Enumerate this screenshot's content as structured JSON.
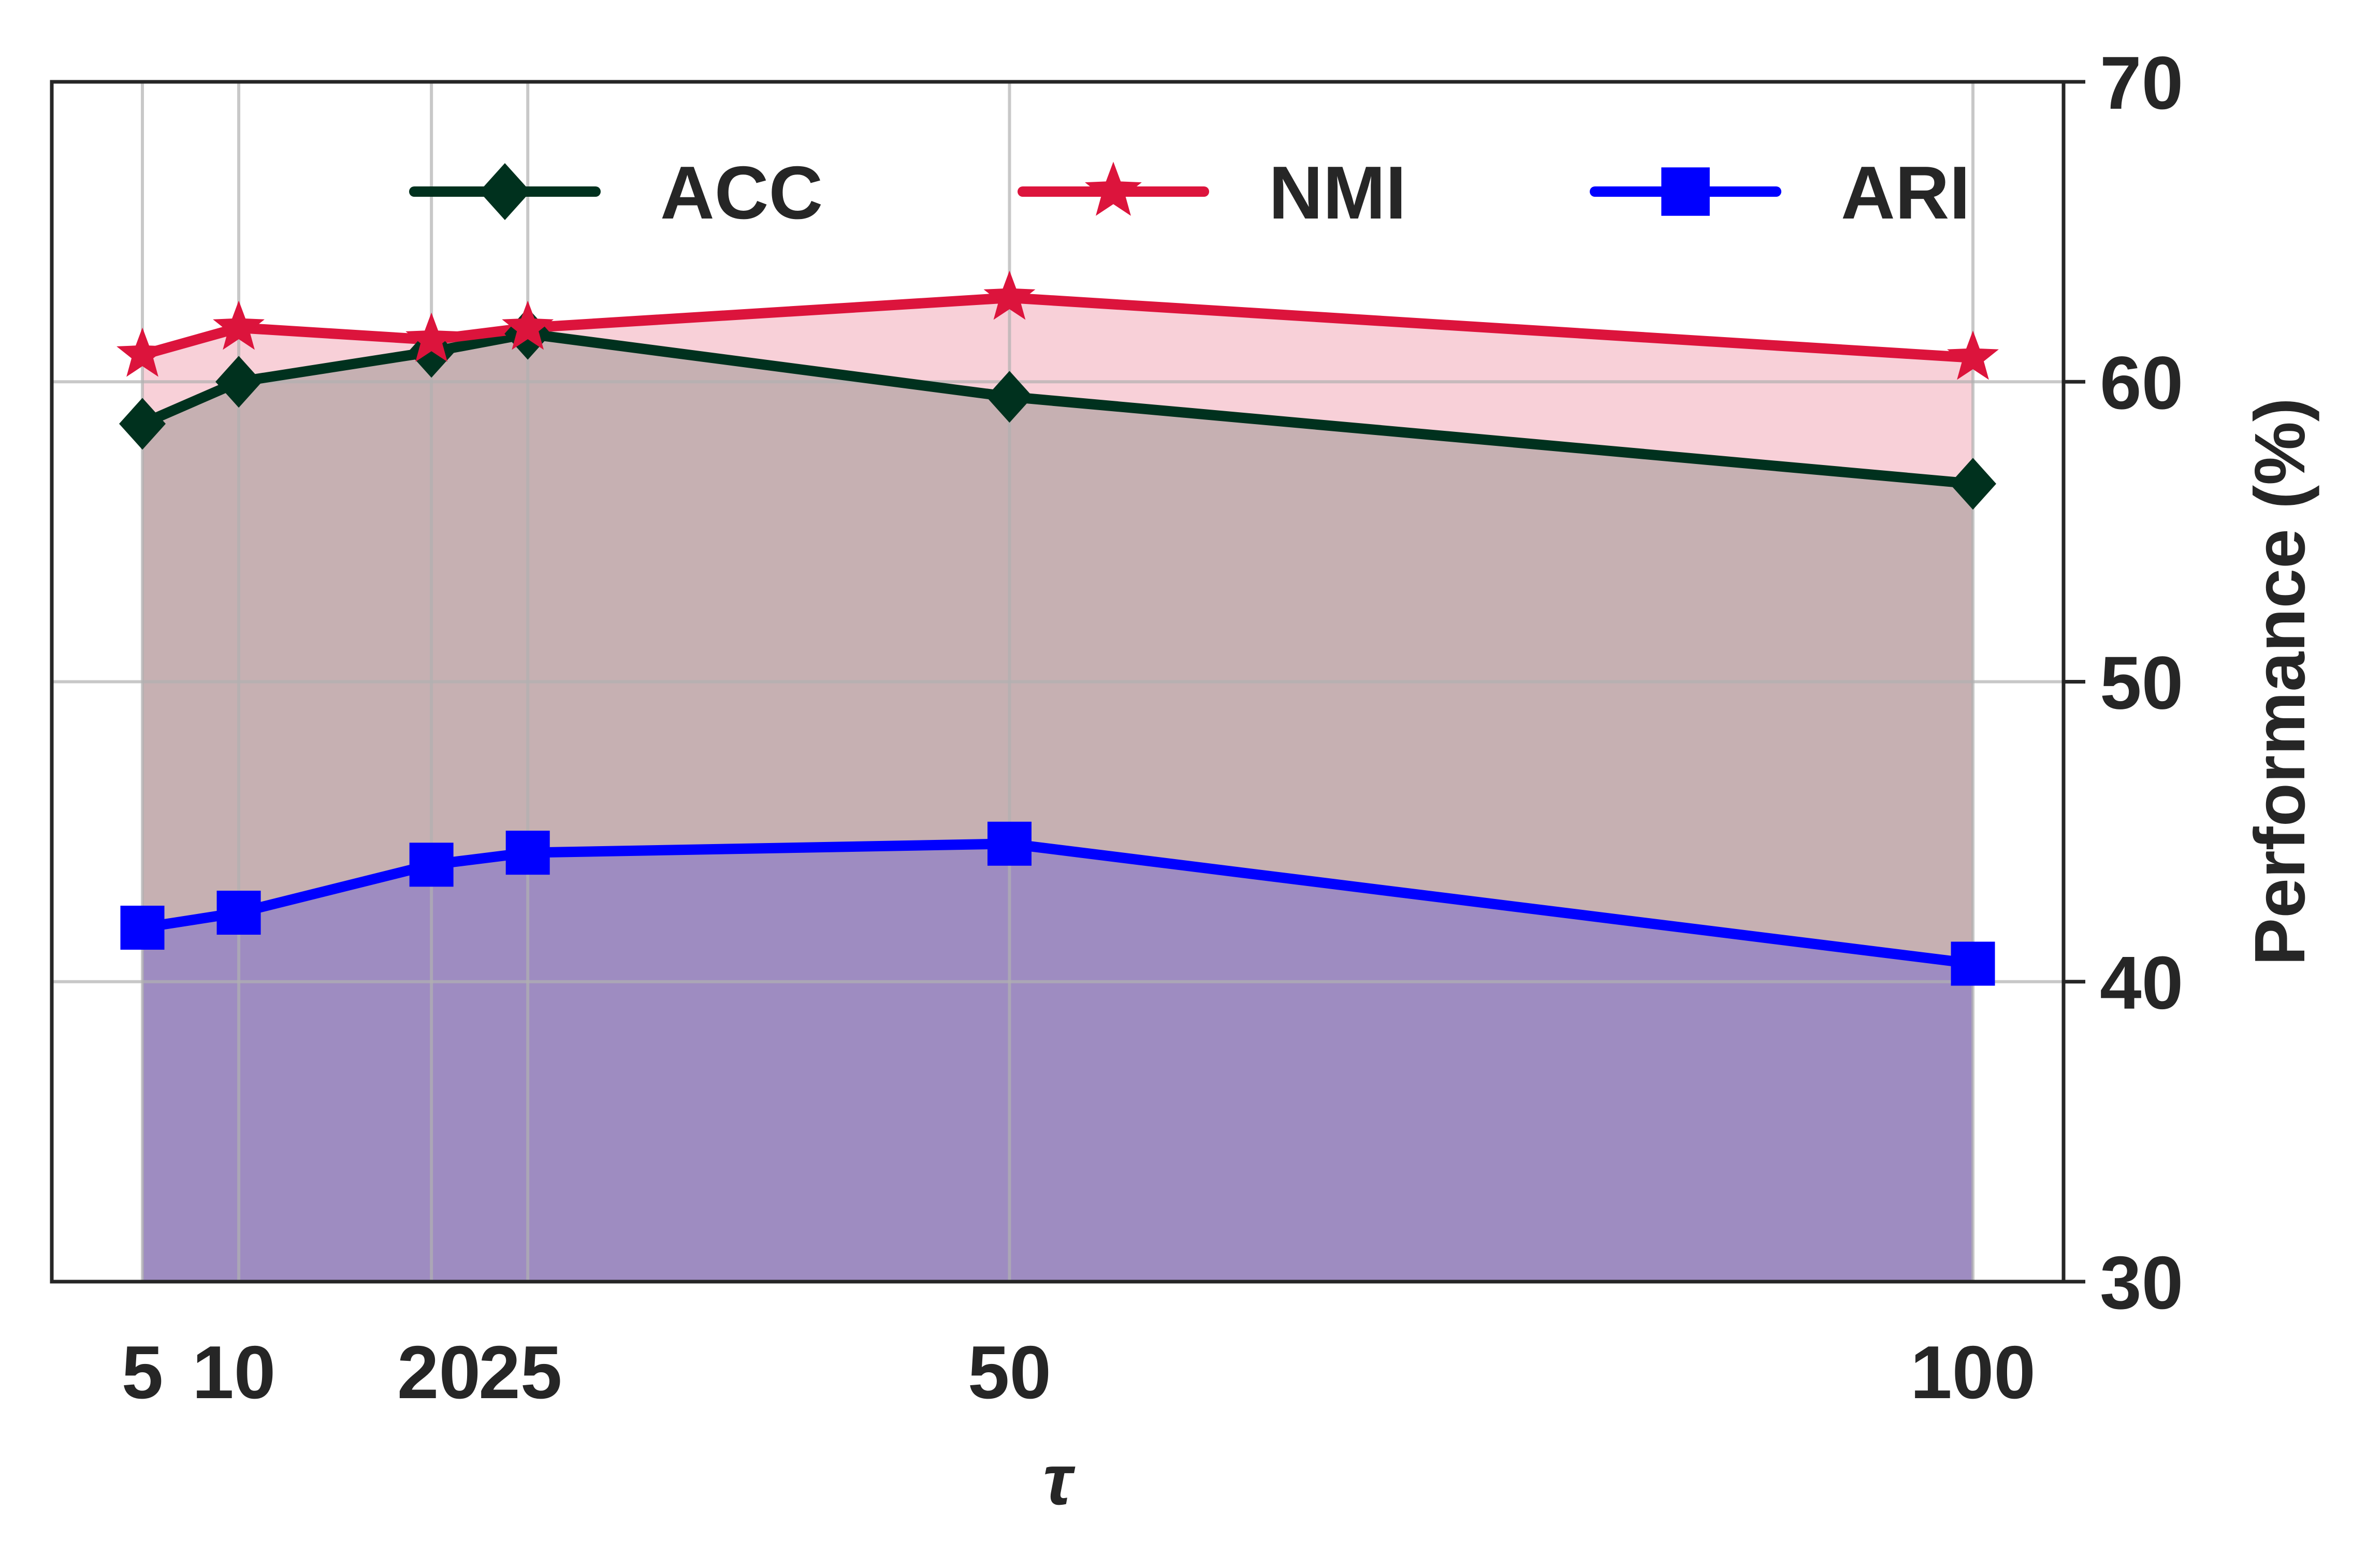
{
  "chart_data": {
    "type": "area",
    "xlabel": "τ",
    "ylabel": "Performance (%)",
    "x": [
      5,
      10,
      20,
      25,
      50,
      100
    ],
    "x_tick_labels": [
      "5",
      "10",
      "20",
      "25",
      "50",
      "100"
    ],
    "ylim": [
      30,
      70
    ],
    "y_ticks": [
      30,
      40,
      50,
      60,
      70
    ],
    "y_axis_side": "right",
    "grid": true,
    "legend_position": "top",
    "series": [
      {
        "name": "ACC",
        "values": [
          58.6,
          60.0,
          61.0,
          61.6,
          59.5,
          56.6
        ],
        "color": "#00311E",
        "marker": "diamond"
      },
      {
        "name": "NMI",
        "values": [
          60.9,
          61.8,
          61.4,
          61.8,
          62.8,
          60.8
        ],
        "color": "#DC143C",
        "marker": "star"
      },
      {
        "name": "ARI",
        "values": [
          41.8,
          42.3,
          43.9,
          44.3,
          44.6,
          40.6
        ],
        "color": "#0000FF",
        "marker": "square"
      }
    ]
  }
}
